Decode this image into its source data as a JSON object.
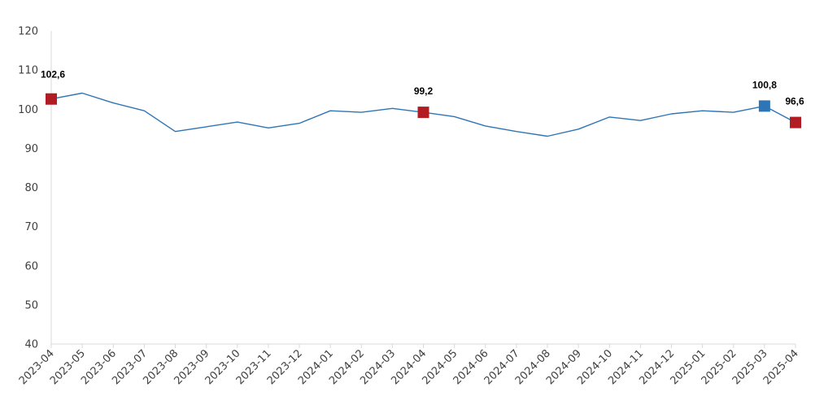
{
  "chart_data": {
    "type": "line",
    "title": "",
    "xlabel": "",
    "ylabel": "",
    "ylim": [
      40,
      120
    ],
    "yticks": [
      "40",
      "50",
      "60",
      "70",
      "80",
      "90",
      "100",
      "110",
      "120"
    ],
    "grid": false,
    "legend": "none",
    "categories": [
      "2023-04",
      "2023-05",
      "2023-06",
      "2023-07",
      "2023-08",
      "2023-09",
      "2023-10",
      "2023-11",
      "2023-12",
      "2024-01",
      "2024-02",
      "2024-03",
      "2024-04",
      "2024-05",
      "2024-06",
      "2024-07",
      "2024-08",
      "2024-09",
      "2024-10",
      "2024-11",
      "2024-12",
      "2025-01",
      "2025-02",
      "2025-03",
      "2025-04"
    ],
    "series": [
      {
        "name": "",
        "color": "#2E75B6",
        "values": [
          102.6,
          104.1,
          101.6,
          99.6,
          94.3,
          95.5,
          96.7,
          95.2,
          96.4,
          99.6,
          99.2,
          100.2,
          99.2,
          98.1,
          95.7,
          94.3,
          93.1,
          94.9,
          98.0,
          97.1,
          98.8,
          99.6,
          99.2,
          100.8,
          96.6
        ]
      }
    ],
    "highlighted_points": [
      {
        "category": "2023-04",
        "value": 102.6,
        "label": "102,6",
        "color": "#B01C22"
      },
      {
        "category": "2024-04",
        "value": 99.2,
        "label": "99,2",
        "color": "#B01C22"
      },
      {
        "category": "2025-03",
        "value": 100.8,
        "label": "100,8",
        "color": "#2E75B6"
      },
      {
        "category": "2025-04",
        "value": 96.6,
        "label": "96,6",
        "color": "#B01C22"
      }
    ],
    "axis_color": "#D9D9D9"
  }
}
